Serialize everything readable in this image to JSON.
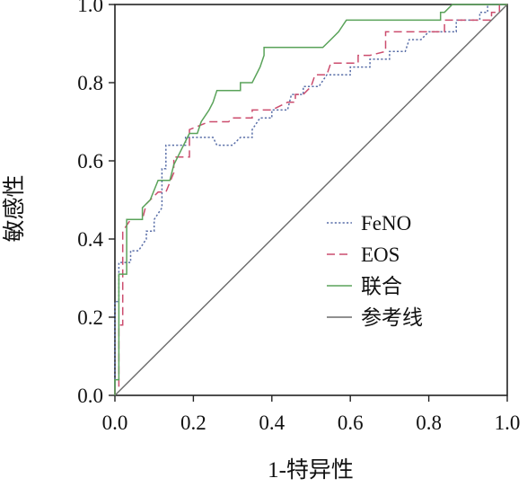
{
  "chart_data": {
    "type": "line",
    "xlabel": "1-特异性",
    "ylabel": "敏感性",
    "xlim": [
      0,
      1
    ],
    "ylim": [
      0,
      1
    ],
    "x_ticks": [
      "0.0",
      "0.2",
      "0.4",
      "0.6",
      "0.8",
      "1.0"
    ],
    "y_ticks": [
      "0.0",
      "0.2",
      "0.4",
      "0.6",
      "0.8",
      "1.0"
    ],
    "grid": false,
    "legend_position": "center-right",
    "series": [
      {
        "name": "FeNO",
        "color": "#5a6fa8",
        "style": "dotted",
        "points": [
          [
            0,
            0
          ],
          [
            0,
            0.24
          ],
          [
            0.01,
            0.24
          ],
          [
            0.01,
            0.34
          ],
          [
            0.04,
            0.34
          ],
          [
            0.04,
            0.37
          ],
          [
            0.06,
            0.37
          ],
          [
            0.08,
            0.4
          ],
          [
            0.08,
            0.42
          ],
          [
            0.1,
            0.42
          ],
          [
            0.1,
            0.45
          ],
          [
            0.12,
            0.48
          ],
          [
            0.12,
            0.58
          ],
          [
            0.13,
            0.58
          ],
          [
            0.13,
            0.64
          ],
          [
            0.18,
            0.64
          ],
          [
            0.18,
            0.66
          ],
          [
            0.25,
            0.66
          ],
          [
            0.26,
            0.64
          ],
          [
            0.3,
            0.64
          ],
          [
            0.32,
            0.66
          ],
          [
            0.35,
            0.66
          ],
          [
            0.35,
            0.68
          ],
          [
            0.37,
            0.71
          ],
          [
            0.4,
            0.71
          ],
          [
            0.4,
            0.73
          ],
          [
            0.44,
            0.73
          ],
          [
            0.45,
            0.77
          ],
          [
            0.48,
            0.77
          ],
          [
            0.48,
            0.79
          ],
          [
            0.52,
            0.79
          ],
          [
            0.54,
            0.82
          ],
          [
            0.6,
            0.82
          ],
          [
            0.6,
            0.84
          ],
          [
            0.65,
            0.84
          ],
          [
            0.65,
            0.86
          ],
          [
            0.7,
            0.86
          ],
          [
            0.7,
            0.88
          ],
          [
            0.74,
            0.88
          ],
          [
            0.75,
            0.91
          ],
          [
            0.78,
            0.91
          ],
          [
            0.8,
            0.93
          ],
          [
            0.87,
            0.93
          ],
          [
            0.87,
            0.96
          ],
          [
            0.93,
            0.96
          ],
          [
            0.93,
            0.98
          ],
          [
            0.95,
            0.98
          ],
          [
            0.95,
            1.0
          ],
          [
            1.0,
            1.0
          ]
        ]
      },
      {
        "name": "EOS",
        "color": "#cc4d6e",
        "style": "dashed",
        "points": [
          [
            0,
            0
          ],
          [
            0,
            0.02
          ],
          [
            0.01,
            0.02
          ],
          [
            0.01,
            0.18
          ],
          [
            0.02,
            0.18
          ],
          [
            0.02,
            0.42
          ],
          [
            0.04,
            0.45
          ],
          [
            0.07,
            0.45
          ],
          [
            0.08,
            0.49
          ],
          [
            0.11,
            0.52
          ],
          [
            0.13,
            0.52
          ],
          [
            0.15,
            0.57
          ],
          [
            0.15,
            0.61
          ],
          [
            0.19,
            0.61
          ],
          [
            0.19,
            0.68
          ],
          [
            0.24,
            0.7
          ],
          [
            0.29,
            0.7
          ],
          [
            0.3,
            0.71
          ],
          [
            0.35,
            0.71
          ],
          [
            0.35,
            0.73
          ],
          [
            0.4,
            0.73
          ],
          [
            0.44,
            0.75
          ],
          [
            0.46,
            0.75
          ],
          [
            0.46,
            0.77
          ],
          [
            0.48,
            0.77
          ],
          [
            0.5,
            0.79
          ],
          [
            0.51,
            0.82
          ],
          [
            0.54,
            0.82
          ],
          [
            0.55,
            0.85
          ],
          [
            0.62,
            0.85
          ],
          [
            0.62,
            0.87
          ],
          [
            0.65,
            0.87
          ],
          [
            0.69,
            0.88
          ],
          [
            0.69,
            0.9
          ],
          [
            0.69,
            0.93
          ],
          [
            0.84,
            0.93
          ],
          [
            0.84,
            0.96
          ],
          [
            0.96,
            0.96
          ],
          [
            0.96,
            0.98
          ],
          [
            0.98,
            0.98
          ],
          [
            0.98,
            1.0
          ],
          [
            1.0,
            1.0
          ]
        ]
      },
      {
        "name": "联合",
        "color": "#5aa35a",
        "style": "solid",
        "points": [
          [
            0,
            0
          ],
          [
            0,
            0.04
          ],
          [
            0.01,
            0.04
          ],
          [
            0.01,
            0.31
          ],
          [
            0.03,
            0.31
          ],
          [
            0.03,
            0.45
          ],
          [
            0.07,
            0.45
          ],
          [
            0.07,
            0.48
          ],
          [
            0.09,
            0.5
          ],
          [
            0.11,
            0.55
          ],
          [
            0.14,
            0.55
          ],
          [
            0.15,
            0.59
          ],
          [
            0.17,
            0.63
          ],
          [
            0.19,
            0.67
          ],
          [
            0.21,
            0.67
          ],
          [
            0.22,
            0.7
          ],
          [
            0.24,
            0.73
          ],
          [
            0.25,
            0.75
          ],
          [
            0.26,
            0.78
          ],
          [
            0.32,
            0.78
          ],
          [
            0.32,
            0.8
          ],
          [
            0.35,
            0.8
          ],
          [
            0.37,
            0.84
          ],
          [
            0.38,
            0.87
          ],
          [
            0.38,
            0.89
          ],
          [
            0.53,
            0.89
          ],
          [
            0.55,
            0.91
          ],
          [
            0.57,
            0.93
          ],
          [
            0.59,
            0.96
          ],
          [
            0.83,
            0.96
          ],
          [
            0.83,
            0.98
          ],
          [
            0.84,
            0.98
          ],
          [
            0.86,
            1.0
          ],
          [
            1.0,
            1.0
          ]
        ]
      },
      {
        "name": "参考线",
        "color": "#6b6b6b",
        "style": "solid",
        "points": [
          [
            0,
            0
          ],
          [
            1,
            1
          ]
        ]
      }
    ]
  }
}
